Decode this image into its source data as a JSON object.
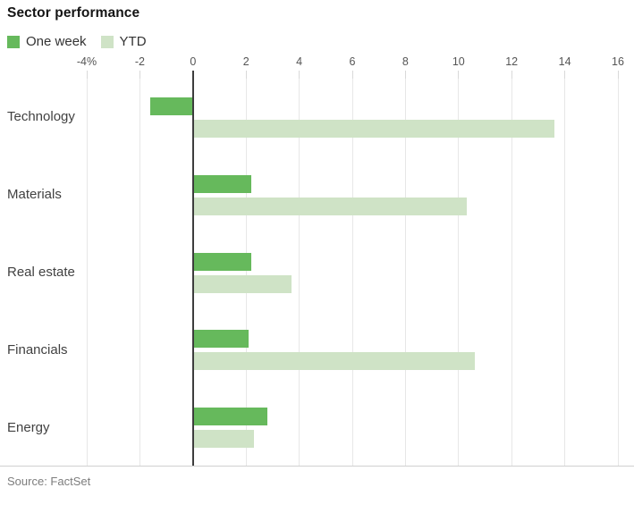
{
  "title": "Sector performance",
  "source": "Source: FactSet",
  "chart_data": {
    "type": "bar",
    "orientation": "horizontal",
    "title": "Sector performance",
    "categories": [
      "Technology",
      "Materials",
      "Real estate",
      "Financials",
      "Energy"
    ],
    "series": [
      {
        "name": "One week",
        "color": "#66b95c",
        "values": [
          -1.6,
          2.2,
          2.2,
          2.1,
          2.8
        ]
      },
      {
        "name": "YTD",
        "color": "#cfe3c6",
        "values": [
          13.6,
          10.3,
          3.7,
          10.6,
          2.3
        ]
      }
    ],
    "unit": "%",
    "xlim": [
      -4,
      16
    ],
    "x_ticks": [
      -4,
      -2,
      0,
      2,
      4,
      6,
      8,
      10,
      12,
      14,
      16
    ],
    "x_tick_labels": [
      "-4%",
      "-2",
      "0",
      "2",
      "4",
      "6",
      "8",
      "10",
      "12",
      "14",
      "16"
    ],
    "grid": true,
    "legend_position": "top-left",
    "zero_line": true,
    "source": "Source: FactSet"
  }
}
